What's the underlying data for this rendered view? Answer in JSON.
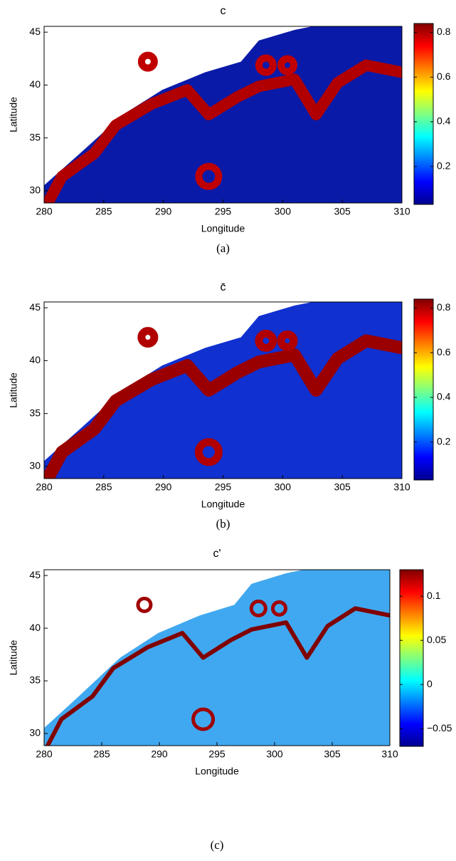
{
  "chart_data": [
    {
      "type": "heatmap",
      "title": "c",
      "xlabel": "Longitude",
      "ylabel": "Latitude",
      "caption": "(a)",
      "xlim": [
        280,
        310
      ],
      "ylim": [
        28.85,
        45.55
      ],
      "xticks": [
        280,
        285,
        290,
        295,
        300,
        305,
        310
      ],
      "yticks": [
        30,
        35,
        40,
        45
      ],
      "clim": [
        0.03,
        0.84
      ],
      "cticks": [
        0.2,
        0.4,
        0.6,
        0.8
      ],
      "colormap": "jet"
    },
    {
      "type": "heatmap",
      "title": "c̄",
      "xlabel": "Longitude",
      "ylabel": "Latitude",
      "caption": "(b)",
      "xlim": [
        280,
        310
      ],
      "ylim": [
        28.85,
        45.55
      ],
      "xticks": [
        280,
        285,
        290,
        295,
        300,
        305,
        310
      ],
      "yticks": [
        30,
        35,
        40,
        45
      ],
      "clim": [
        0.03,
        0.84
      ],
      "cticks": [
        0.2,
        0.4,
        0.6,
        0.8
      ],
      "colormap": "jet"
    },
    {
      "type": "heatmap",
      "title": "c'",
      "xlabel": "Longitude",
      "ylabel": "Latitude",
      "caption": "(c)",
      "xlim": [
        280,
        310
      ],
      "ylim": [
        28.85,
        45.55
      ],
      "xticks": [
        280,
        285,
        290,
        295,
        300,
        305,
        310
      ],
      "yticks": [
        30,
        35,
        40,
        45
      ],
      "clim": [
        -0.07,
        0.13
      ],
      "cticks": [
        {
          "value": -0.05,
          "label": "−0.05"
        },
        0,
        0.05,
        0.1
      ],
      "colormap": "jet"
    }
  ]
}
